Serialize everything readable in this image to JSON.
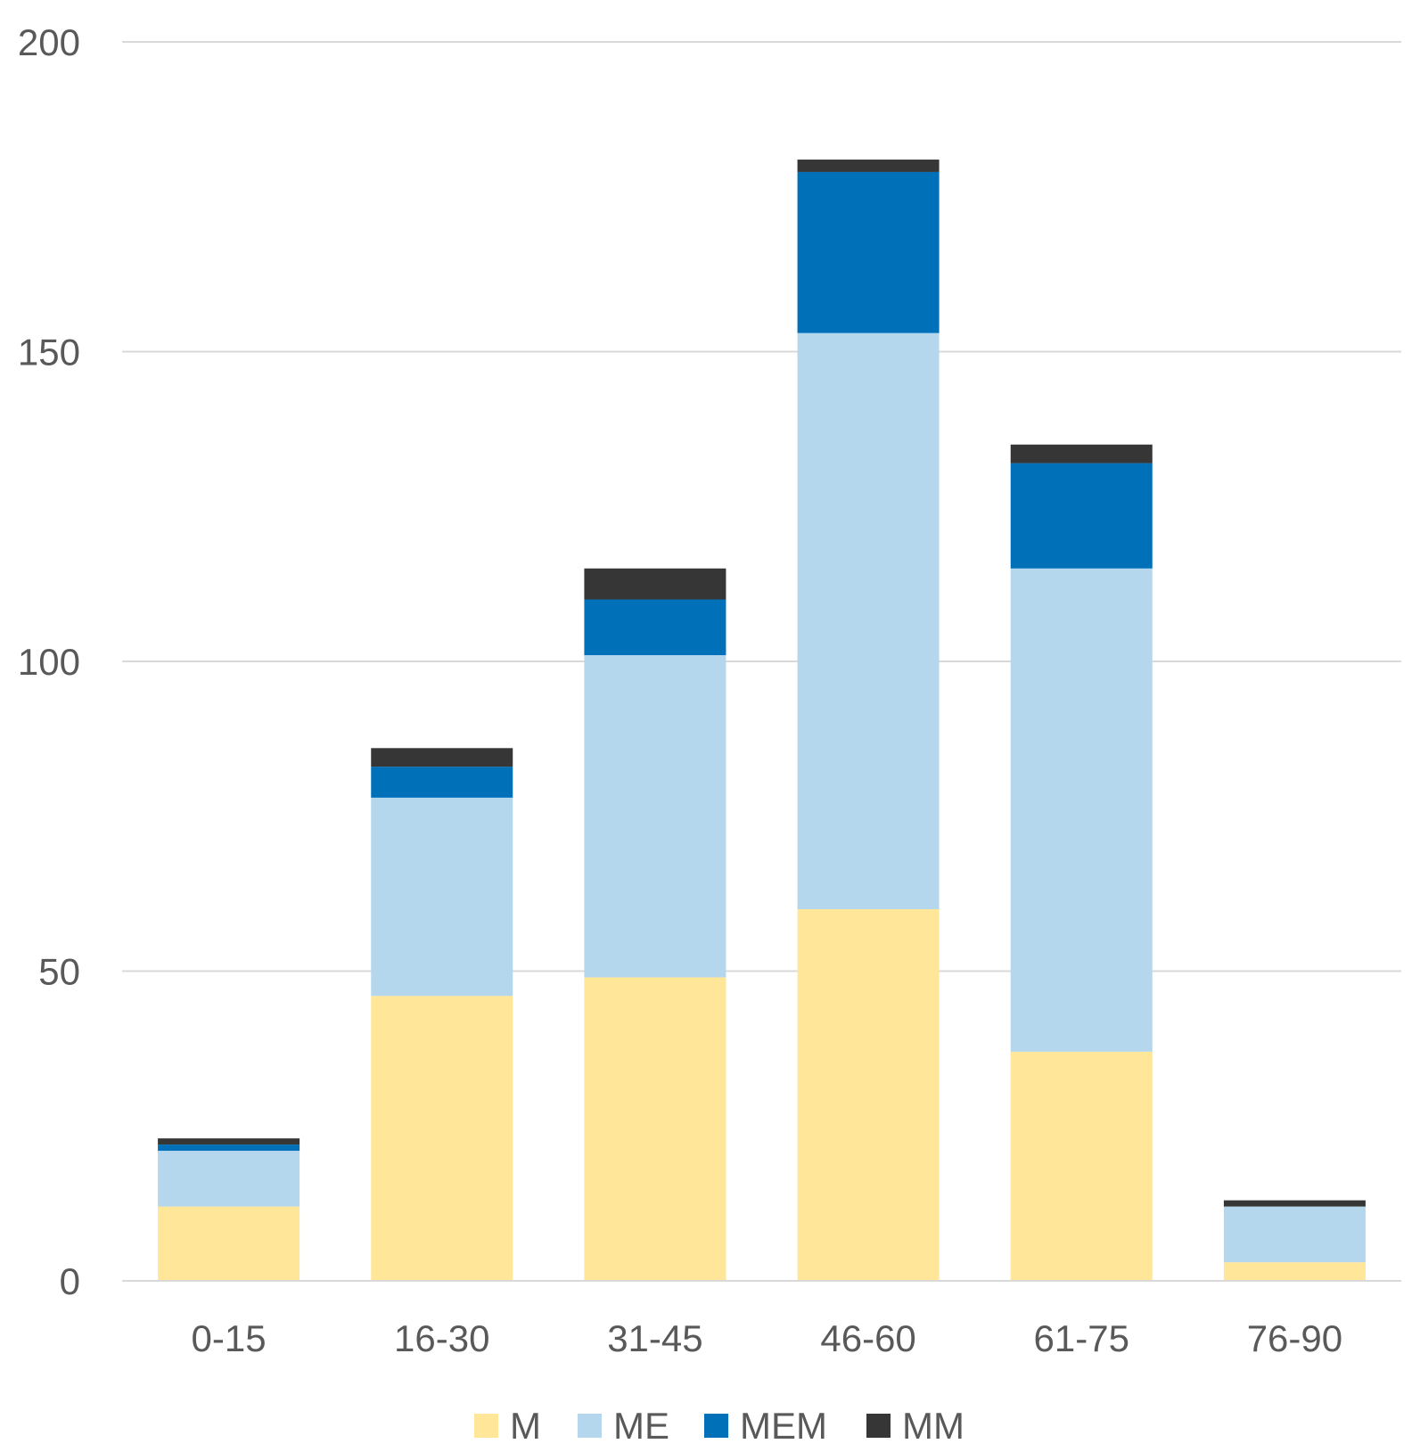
{
  "chart_data": {
    "type": "bar",
    "stacked": true,
    "title": "",
    "xlabel": "",
    "ylabel": "",
    "ylim": [
      0,
      200
    ],
    "yticks": [
      0,
      50,
      100,
      150,
      200
    ],
    "ytick_labels": [
      "0",
      "50",
      "100",
      "150",
      "200"
    ],
    "grid": true,
    "legend_position": "bottom",
    "categories": [
      "0-15",
      "16-30",
      "31-45",
      "46-60",
      "61-75",
      "76-90"
    ],
    "series": [
      {
        "name": "M",
        "color": "#FFE699",
        "values": [
          12,
          46,
          49,
          60,
          37,
          3
        ]
      },
      {
        "name": "ME",
        "color": "#B4D7EE",
        "values": [
          9,
          32,
          52,
          93,
          78,
          9
        ]
      },
      {
        "name": "MEM",
        "color": "#0070B8",
        "values": [
          1,
          5,
          9,
          26,
          17,
          0
        ]
      },
      {
        "name": "MM",
        "color": "#363636",
        "values": [
          1,
          3,
          5,
          2,
          3,
          1
        ]
      }
    ]
  }
}
